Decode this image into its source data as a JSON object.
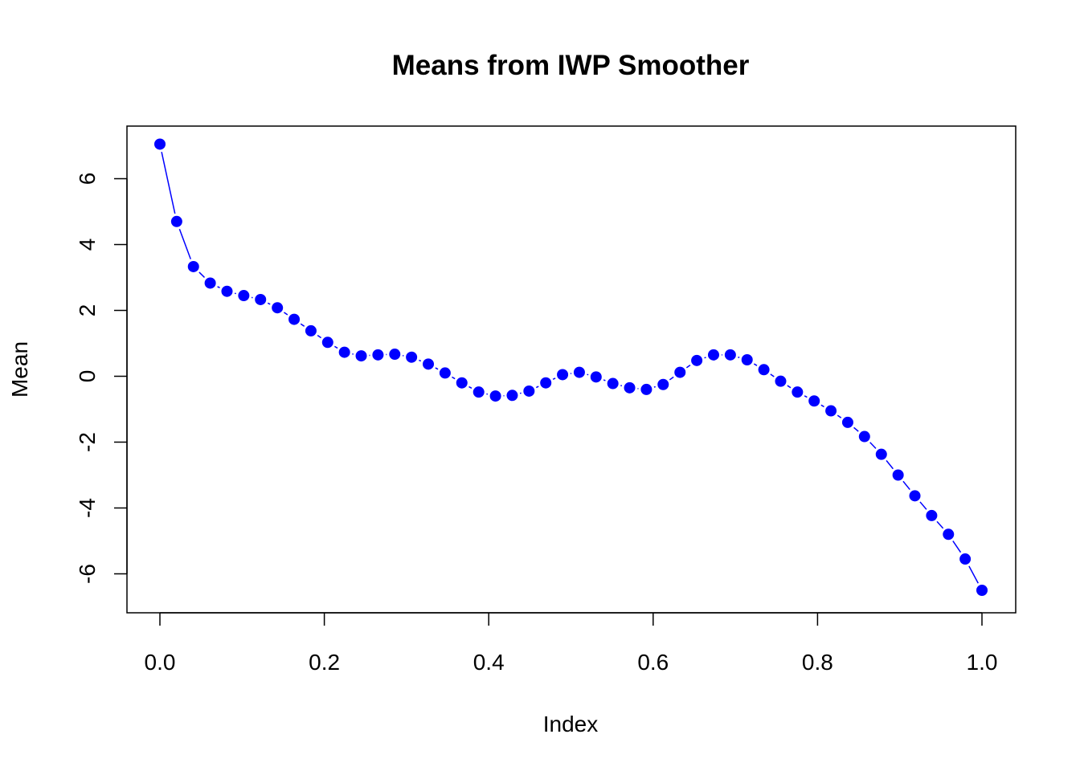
{
  "chart_data": {
    "type": "line",
    "title": "Means from IWP Smoother",
    "xlabel": "Index",
    "ylabel": "Mean",
    "xlim": [
      0.0,
      1.0
    ],
    "ylim": [
      -7.2,
      7.6
    ],
    "x_ticks": [
      "0.0",
      "0.2",
      "0.4",
      "0.6",
      "0.8",
      "1.0"
    ],
    "y_ticks": [
      "-6",
      "-4",
      "-2",
      "0",
      "2",
      "4",
      "6"
    ],
    "grid": false,
    "legend": "none",
    "series": [
      {
        "color": "#0000ff",
        "marker": "filled-circle",
        "line": "solid-overplotted",
        "x": [
          0.0,
          0.0204,
          0.0408,
          0.0612,
          0.0816,
          0.102,
          0.1224,
          0.1429,
          0.1633,
          0.1837,
          0.2041,
          0.2245,
          0.2449,
          0.2653,
          0.2857,
          0.3061,
          0.3265,
          0.3469,
          0.3673,
          0.3878,
          0.4082,
          0.4286,
          0.449,
          0.4694,
          0.4898,
          0.5102,
          0.5306,
          0.551,
          0.5714,
          0.5918,
          0.6122,
          0.6327,
          0.6531,
          0.6735,
          0.6939,
          0.7143,
          0.7347,
          0.7551,
          0.7755,
          0.7959,
          0.8163,
          0.8367,
          0.8571,
          0.8776,
          0.898,
          0.9184,
          0.9388,
          0.9592,
          0.9796,
          1.0
        ],
        "values": [
          7.05,
          4.7,
          3.33,
          2.83,
          2.58,
          2.45,
          2.33,
          2.08,
          1.73,
          1.38,
          1.03,
          0.73,
          0.62,
          0.65,
          0.67,
          0.58,
          0.37,
          0.1,
          -0.2,
          -0.48,
          -0.6,
          -0.58,
          -0.45,
          -0.2,
          0.05,
          0.12,
          -0.02,
          -0.22,
          -0.35,
          -0.4,
          -0.25,
          0.12,
          0.48,
          0.65,
          0.65,
          0.5,
          0.2,
          -0.15,
          -0.48,
          -0.75,
          -1.05,
          -1.4,
          -1.83,
          -2.37,
          -3.0,
          -3.63,
          -4.23,
          -4.8,
          -5.55,
          -6.5
        ]
      }
    ]
  }
}
